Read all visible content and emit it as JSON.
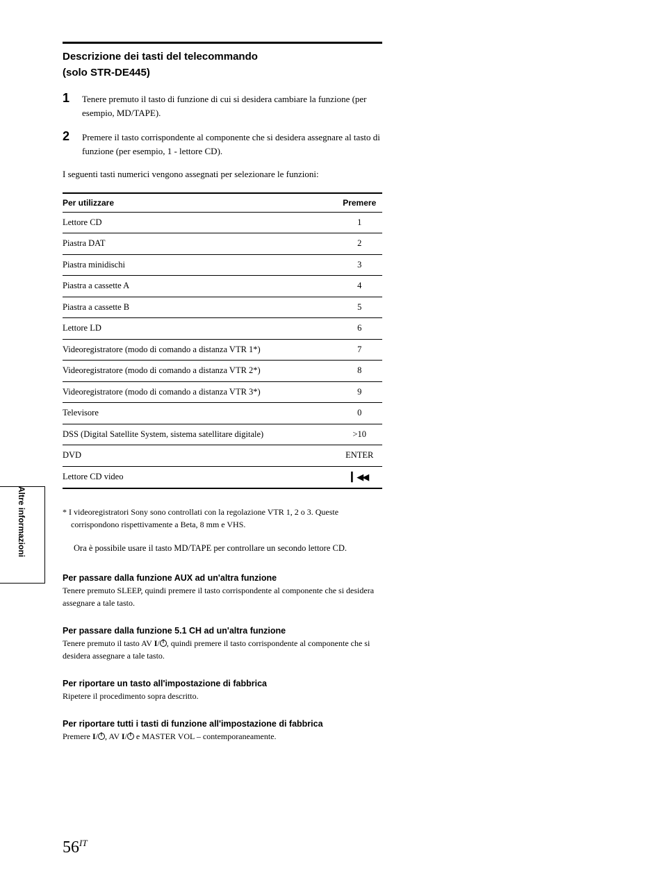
{
  "sideLabel": "Altre informazioni",
  "title": "Descrizione dei tasti del telecommando",
  "subtitle": "(solo STR-DE445)",
  "steps": [
    {
      "num": "1",
      "text": "Tenere premuto il tasto di funzione di cui si desidera cambiare la funzione (per esempio, MD/TAPE)."
    },
    {
      "num": "2",
      "text": "Premere il tasto corrispondente al componente che si desidera assegnare al tasto di funzione (per esempio, 1 - lettore CD)."
    }
  ],
  "intro": "I seguenti tasti numerici vengono assegnati per selezionare le funzioni:",
  "table": {
    "headers": [
      "Per utilizzare",
      "Premere"
    ],
    "rows": [
      [
        "Lettore CD",
        "1"
      ],
      [
        "Piastra DAT",
        "2"
      ],
      [
        "Piastra minidischi",
        "3"
      ],
      [
        "Piastra a cassette A",
        "4"
      ],
      [
        "Piastra a cassette B",
        "5"
      ],
      [
        "Lettore LD",
        "6"
      ],
      [
        "Videoregistratore (modo di comando a distanza VTR 1*)",
        "7"
      ],
      [
        "Videoregistratore (modo di comando a distanza VTR 2*)",
        "8"
      ],
      [
        "Videoregistratore (modo di comando a distanza VTR 3*)",
        "9"
      ],
      [
        "Televisore",
        "0"
      ],
      [
        "DSS (Digital Satellite System, sistema satellitare digitale)",
        ">10"
      ],
      [
        "DVD",
        "ENTER"
      ],
      [
        "Lettore CD video",
        "__PREV__"
      ]
    ]
  },
  "footnote": "* I videoregistratori Sony sono controllati con la regolazione VTR 1, 2 o 3. Queste corrispondono rispettivamente a Beta, 8 mm e VHS.",
  "note": "Ora è possibile usare il tasto MD/TAPE per controllare un secondo lettore CD.",
  "sections": [
    {
      "title": "Per passare dalla funzione AUX ad un'altra funzione",
      "body": "Tenere premuto SLEEP, quindi premere il tasto corrispondente al componente che si desidera assegnare a tale tasto."
    },
    {
      "title": "Per passare dalla funzione 5.1 CH ad un'altra funzione",
      "bodyParts": [
        "Tenere premuto il tasto AV ",
        "__BOLD_I__",
        "/",
        "__POWER__",
        ", quindi premere il tasto corrispondente al componente che si desidera assegnare a tale tasto."
      ]
    },
    {
      "title": "Per riportare un tasto all'impostazione di fabbrica",
      "body": "Ripetere il procedimento sopra descritto."
    },
    {
      "title": "Per riportare tutti i tasti di funzione all'impostazione di fabbrica",
      "bodyParts": [
        "Premere ",
        "__BOLD_I__",
        "/",
        "__POWER__",
        ", AV ",
        "__BOLD_I__",
        "/",
        "__POWER__",
        " e MASTER VOL – contemporaneamente."
      ]
    }
  ],
  "pageNum": "56",
  "pageSuffix": "IT"
}
